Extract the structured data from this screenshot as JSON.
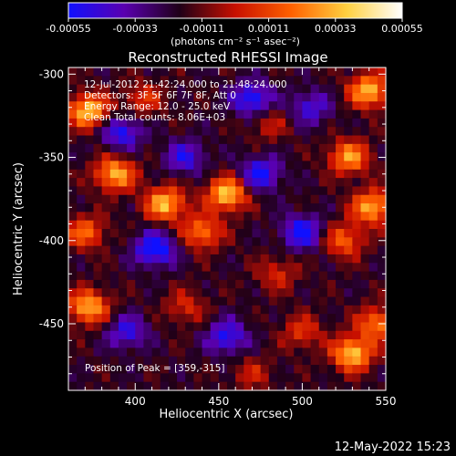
{
  "colorbar": {
    "ticks": [
      "-0.00055",
      "-0.00033",
      "-0.00011",
      "0.00011",
      "0.00033",
      "0.00055"
    ],
    "tick_values": [
      -0.00055,
      -0.00033,
      -0.00011,
      0.00011,
      0.00033,
      0.00055
    ],
    "range": [
      -0.00055,
      0.00055
    ],
    "unit_label": "(photons cm⁻² s⁻¹ asec⁻²)",
    "colors": [
      "#1010ff",
      "#5a00b0",
      "#200018",
      "#c81000",
      "#ff6000",
      "#ffd040",
      "#ffffff"
    ]
  },
  "chart_data": {
    "type": "heatmap",
    "title": "Reconstructed RHESSI Image",
    "xlabel": "Heliocentric X (arcsec)",
    "ylabel": "Heliocentric Y (arcsec)",
    "xlim": [
      360,
      550
    ],
    "ylim": [
      -490,
      -296
    ],
    "xticks": [
      "400",
      "450",
      "500",
      "550"
    ],
    "xtick_values": [
      400,
      450,
      500,
      550
    ],
    "yticks": [
      "-300",
      "-350",
      "-400",
      "-450"
    ],
    "ytick_values": [
      -300,
      -350,
      -400,
      -450
    ],
    "peak": {
      "x": 359,
      "y": -315
    },
    "annotations": [
      "12-Jul-2012 21:42:24.000 to 21:48:24.000",
      "Detectors: 3F 5F 6F 7F 8F, Att 0",
      "Energy Range: 12.0 - 25.0 keV",
      "Clean     Total counts: 8.06E+03"
    ],
    "peak_label": "Position of Peak = [359,-315]",
    "bright_regions": [
      {
        "x": 372,
        "y": -322,
        "v": 0.00055
      },
      {
        "x": 388,
        "y": -360,
        "v": 0.0005
      },
      {
        "x": 370,
        "y": -395,
        "v": 0.00035
      },
      {
        "x": 372,
        "y": -440,
        "v": 0.0005
      },
      {
        "x": 405,
        "y": -315,
        "v": 0.00025
      },
      {
        "x": 418,
        "y": -378,
        "v": 0.00052
      },
      {
        "x": 455,
        "y": -372,
        "v": 0.00055
      },
      {
        "x": 440,
        "y": -395,
        "v": 0.0004
      },
      {
        "x": 430,
        "y": -440,
        "v": 0.00022
      },
      {
        "x": 480,
        "y": -330,
        "v": 0.00018
      },
      {
        "x": 485,
        "y": -420,
        "v": 0.00022
      },
      {
        "x": 540,
        "y": -310,
        "v": 0.00052
      },
      {
        "x": 528,
        "y": -350,
        "v": 0.00045
      },
      {
        "x": 542,
        "y": -380,
        "v": 0.0005
      },
      {
        "x": 525,
        "y": -400,
        "v": 0.00035
      },
      {
        "x": 530,
        "y": -468,
        "v": 0.00055
      },
      {
        "x": 545,
        "y": -450,
        "v": 0.0004
      },
      {
        "x": 500,
        "y": -455,
        "v": 0.00025
      },
      {
        "x": 470,
        "y": -480,
        "v": 0.00018
      }
    ],
    "dark_regions": [
      {
        "x": 412,
        "y": -405,
        "v": -0.00045
      },
      {
        "x": 470,
        "y": -315,
        "v": -0.0004
      },
      {
        "x": 392,
        "y": -335,
        "v": -0.00035
      },
      {
        "x": 475,
        "y": -360,
        "v": -0.00038
      },
      {
        "x": 500,
        "y": -395,
        "v": -0.0004
      },
      {
        "x": 395,
        "y": -455,
        "v": -0.0003
      },
      {
        "x": 455,
        "y": -458,
        "v": -0.00035
      },
      {
        "x": 430,
        "y": -350,
        "v": -0.0003
      },
      {
        "x": 505,
        "y": -320,
        "v": -0.00028
      }
    ]
  },
  "timestamp": "12-May-2022 15:23"
}
